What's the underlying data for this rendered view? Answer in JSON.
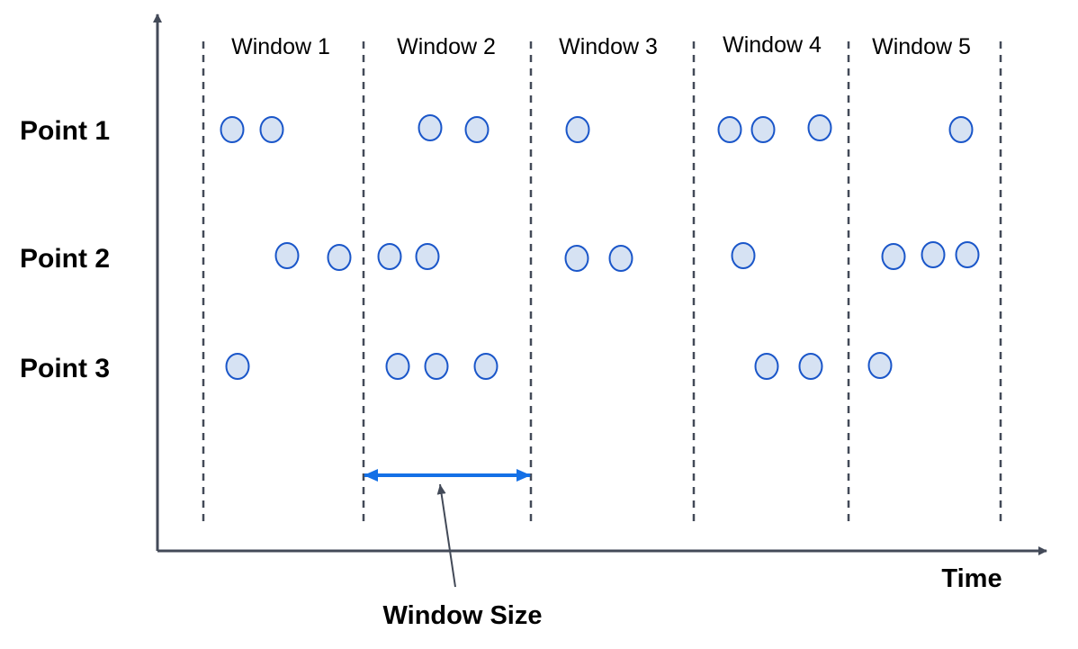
{
  "windows": [
    {
      "label": "Window 1"
    },
    {
      "label": "Window 2"
    },
    {
      "label": "Window 3"
    },
    {
      "label": "Window 4"
    },
    {
      "label": "Window 5"
    }
  ],
  "rows": [
    {
      "label": "Point 1"
    },
    {
      "label": "Point 2"
    },
    {
      "label": "Point 3"
    }
  ],
  "axes": {
    "x_label": "Time"
  },
  "annotation": {
    "label": "Window Size"
  },
  "colors": {
    "axis": "#434a58",
    "divider": "#434a58",
    "point_fill": "#d6e2f3",
    "point_stroke": "#1a56c9",
    "window_size_arrow": "#1470e6",
    "pointer_line": "#434a58"
  }
}
